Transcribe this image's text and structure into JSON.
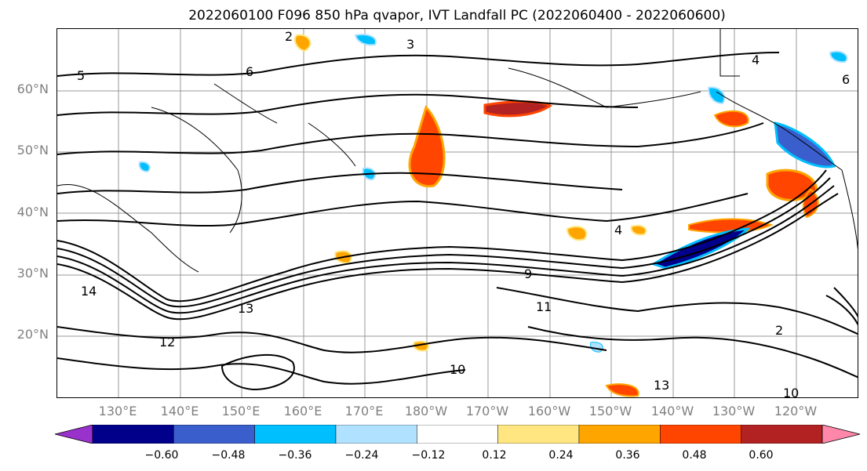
{
  "title": "2022060100 F096 850 hPa qvapor, IVT Landfall PC (2022060400 - 2022060600)",
  "lat_labels": [
    "60°N",
    "50°N",
    "40°N",
    "30°N",
    "20°N"
  ],
  "lon_labels": [
    "130°E",
    "140°E",
    "150°E",
    "160°E",
    "170°E",
    "180°W",
    "170°W",
    "160°W",
    "150°W",
    "140°W",
    "130°W",
    "120°W"
  ],
  "colorbar": {
    "ticks": [
      "−0.60",
      "−0.48",
      "−0.36",
      "−0.24",
      "−0.12",
      "0.12",
      "0.24",
      "0.36",
      "0.48",
      "0.60"
    ],
    "colors": [
      "#9932cc",
      "#00008b",
      "#3a5fcd",
      "#00bfff",
      "#b0e2ff",
      "#ffffff",
      "#ffe680",
      "#ffa500",
      "#ff4500",
      "#b22222",
      "#ff88aa"
    ]
  },
  "contour_labels": [
    "2",
    "3",
    "4",
    "5",
    "6",
    "9",
    "11",
    "12",
    "13",
    "14",
    "10"
  ],
  "map_colors": {
    "land_lines": "#000000",
    "grid": "#999999",
    "positive_fill": "#ff4500",
    "negative_fill": "#3a5fcd"
  }
}
